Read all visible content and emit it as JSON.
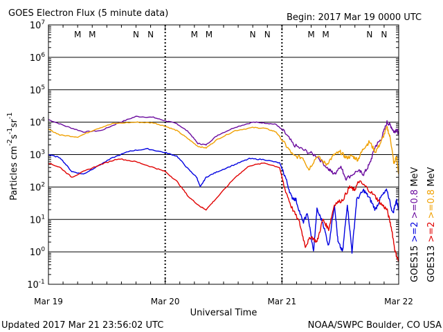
{
  "chart_data": {
    "type": "line",
    "title": "GOES Electron Flux (5 minute data)",
    "begin_label": "Begin: 2017 Mar 19 0000 UTC",
    "xlabel": "Universal Time",
    "ylabel_parts": [
      "Particles cm",
      "-2",
      "s",
      "-1",
      "sr",
      "-1"
    ],
    "x_range": [
      "2017-03-19T00:00",
      "2017-03-22T00:00"
    ],
    "x_ticks": [
      "Mar 19",
      "Mar 20",
      "Mar 21",
      "Mar 22"
    ],
    "y_scale": "log",
    "ylim": [
      0.1,
      10000000
    ],
    "y_tick_labels": [
      {
        "base": "10",
        "exp": "7"
      },
      {
        "base": "10",
        "exp": "6"
      },
      {
        "base": "10",
        "exp": "5"
      },
      {
        "base": "10",
        "exp": "4"
      },
      {
        "base": "10",
        "exp": "3"
      },
      {
        "base": "10",
        "exp": "2"
      },
      {
        "base": "10",
        "exp": "1"
      },
      {
        "base": "10",
        "exp": "0"
      },
      {
        "base": "10",
        "exp": "-1"
      }
    ],
    "threshold": {
      "value": 1000,
      "style": "dashed"
    },
    "grid": "horizontal decades",
    "markers": [
      {
        "label": "M",
        "day": 0.25,
        "color": "#e00000"
      },
      {
        "label": "M",
        "day": 0.375,
        "color": "#0000e0"
      },
      {
        "label": "N",
        "day": 0.75,
        "color": "#e00000"
      },
      {
        "label": "N",
        "day": 0.875,
        "color": "#0000e0"
      },
      {
        "label": "M",
        "day": 1.25,
        "color": "#e00000"
      },
      {
        "label": "M",
        "day": 1.375,
        "color": "#0000e0"
      },
      {
        "label": "N",
        "day": 1.75,
        "color": "#e00000"
      },
      {
        "label": "N",
        "day": 1.875,
        "color": "#0000e0"
      },
      {
        "label": "M",
        "day": 2.25,
        "color": "#e00000"
      },
      {
        "label": "M",
        "day": 2.375,
        "color": "#0000e0"
      },
      {
        "label": "N",
        "day": 2.75,
        "color": "#e00000"
      },
      {
        "label": "N",
        "day": 2.875,
        "color": "#0000e0"
      }
    ],
    "legend_right": [
      {
        "sat": "GOES15",
        "parts": [
          {
            "text": ">=2",
            "color": "#0000e0"
          },
          {
            "text": ">=0.8",
            "color": "#6a0a9e"
          },
          {
            "text": "MeV",
            "color": "#000000"
          }
        ]
      },
      {
        "sat": "GOES13",
        "parts": [
          {
            "text": ">=2",
            "color": "#e00000"
          },
          {
            "text": ">=0.8",
            "color": "#f0a000"
          },
          {
            "text": "MeV",
            "color": "#000000"
          }
        ]
      }
    ],
    "series": [
      {
        "name": "GOES15 >=0.8 MeV",
        "color": "#6a0a9e",
        "points": [
          [
            0.0,
            12000
          ],
          [
            0.15,
            7500
          ],
          [
            0.3,
            5000
          ],
          [
            0.45,
            5500
          ],
          [
            0.6,
            9500
          ],
          [
            0.75,
            15000
          ],
          [
            0.9,
            14000
          ],
          [
            1.0,
            11000
          ],
          [
            1.1,
            9000
          ],
          [
            1.2,
            5000
          ],
          [
            1.28,
            2200
          ],
          [
            1.35,
            2000
          ],
          [
            1.45,
            4000
          ],
          [
            1.6,
            7000
          ],
          [
            1.75,
            10000
          ],
          [
            1.85,
            9500
          ],
          [
            1.95,
            8500
          ],
          [
            2.02,
            5000
          ],
          [
            2.1,
            2000
          ],
          [
            2.2,
            1300
          ],
          [
            2.3,
            900
          ],
          [
            2.4,
            350
          ],
          [
            2.45,
            250
          ],
          [
            2.5,
            450
          ],
          [
            2.55,
            180
          ],
          [
            2.65,
            320
          ],
          [
            2.7,
            250
          ],
          [
            2.75,
            500
          ],
          [
            2.8,
            1800
          ],
          [
            2.85,
            3000
          ],
          [
            2.9,
            10000
          ],
          [
            2.93,
            8000
          ],
          [
            2.96,
            5000
          ],
          [
            2.98,
            6000
          ],
          [
            3.0,
            4500
          ]
        ]
      },
      {
        "name": "GOES13 >=0.8 MeV",
        "color": "#f0a000",
        "points": [
          [
            0.0,
            6000
          ],
          [
            0.1,
            4000
          ],
          [
            0.25,
            3500
          ],
          [
            0.4,
            6000
          ],
          [
            0.55,
            9000
          ],
          [
            0.75,
            10000
          ],
          [
            0.9,
            9500
          ],
          [
            1.0,
            7500
          ],
          [
            1.1,
            5500
          ],
          [
            1.2,
            3000
          ],
          [
            1.28,
            1800
          ],
          [
            1.35,
            1600
          ],
          [
            1.45,
            3000
          ],
          [
            1.6,
            5500
          ],
          [
            1.75,
            6800
          ],
          [
            1.85,
            6500
          ],
          [
            1.95,
            5000
          ],
          [
            2.03,
            2000
          ],
          [
            2.1,
            900
          ],
          [
            2.18,
            800
          ],
          [
            2.23,
            350
          ],
          [
            2.3,
            900
          ],
          [
            2.38,
            500
          ],
          [
            2.45,
            1000
          ],
          [
            2.5,
            1200
          ],
          [
            2.55,
            800
          ],
          [
            2.6,
            900
          ],
          [
            2.65,
            700
          ],
          [
            2.7,
            1600
          ],
          [
            2.75,
            2500
          ],
          [
            2.8,
            1200
          ],
          [
            2.85,
            2500
          ],
          [
            2.9,
            7000
          ],
          [
            2.93,
            3000
          ],
          [
            2.96,
            500
          ],
          [
            2.98,
            900
          ],
          [
            3.0,
            250
          ]
        ]
      },
      {
        "name": "GOES15 >=2 MeV",
        "color": "#0000e0",
        "points": [
          [
            0.0,
            1000
          ],
          [
            0.1,
            800
          ],
          [
            0.2,
            300
          ],
          [
            0.3,
            250
          ],
          [
            0.4,
            400
          ],
          [
            0.55,
            800
          ],
          [
            0.7,
            1300
          ],
          [
            0.85,
            1500
          ],
          [
            1.0,
            1150
          ],
          [
            1.1,
            900
          ],
          [
            1.2,
            350
          ],
          [
            1.27,
            200
          ],
          [
            1.3,
            100
          ],
          [
            1.35,
            200
          ],
          [
            1.45,
            300
          ],
          [
            1.6,
            500
          ],
          [
            1.72,
            750
          ],
          [
            1.85,
            700
          ],
          [
            1.98,
            550
          ],
          [
            2.03,
            200
          ],
          [
            2.08,
            50
          ],
          [
            2.12,
            40
          ],
          [
            2.18,
            8
          ],
          [
            2.22,
            15
          ],
          [
            2.27,
            1
          ],
          [
            2.3,
            20
          ],
          [
            2.35,
            8
          ],
          [
            2.4,
            1.5
          ],
          [
            2.45,
            30
          ],
          [
            2.48,
            2
          ],
          [
            2.52,
            1
          ],
          [
            2.56,
            30
          ],
          [
            2.6,
            1
          ],
          [
            2.64,
            40
          ],
          [
            2.7,
            80
          ],
          [
            2.75,
            45
          ],
          [
            2.8,
            20
          ],
          [
            2.85,
            50
          ],
          [
            2.9,
            80
          ],
          [
            2.95,
            15
          ],
          [
            2.98,
            40
          ],
          [
            3.0,
            20
          ]
        ]
      },
      {
        "name": "GOES13 >=2 MeV",
        "color": "#e00000",
        "points": [
          [
            0.0,
            550
          ],
          [
            0.1,
            400
          ],
          [
            0.2,
            200
          ],
          [
            0.3,
            300
          ],
          [
            0.45,
            500
          ],
          [
            0.6,
            750
          ],
          [
            0.75,
            600
          ],
          [
            0.9,
            400
          ],
          [
            1.0,
            300
          ],
          [
            1.1,
            150
          ],
          [
            1.2,
            50
          ],
          [
            1.3,
            25
          ],
          [
            1.35,
            20
          ],
          [
            1.45,
            50
          ],
          [
            1.6,
            200
          ],
          [
            1.72,
            450
          ],
          [
            1.85,
            550
          ],
          [
            1.98,
            400
          ],
          [
            2.02,
            100
          ],
          [
            2.08,
            25
          ],
          [
            2.15,
            8
          ],
          [
            2.2,
            1.5
          ],
          [
            2.25,
            3
          ],
          [
            2.3,
            2
          ],
          [
            2.35,
            10
          ],
          [
            2.4,
            5
          ],
          [
            2.45,
            30
          ],
          [
            2.52,
            40
          ],
          [
            2.58,
            100
          ],
          [
            2.62,
            80
          ],
          [
            2.66,
            150
          ],
          [
            2.72,
            100
          ],
          [
            2.8,
            50
          ],
          [
            2.85,
            30
          ],
          [
            2.9,
            20
          ],
          [
            2.94,
            5
          ],
          [
            2.97,
            1
          ],
          [
            3.0,
            0.5
          ]
        ]
      }
    ]
  },
  "footer": {
    "updated": "Updated 2017 Mar 21 23:56:02 UTC",
    "source": "NOAA/SWPC Boulder, CO USA"
  }
}
